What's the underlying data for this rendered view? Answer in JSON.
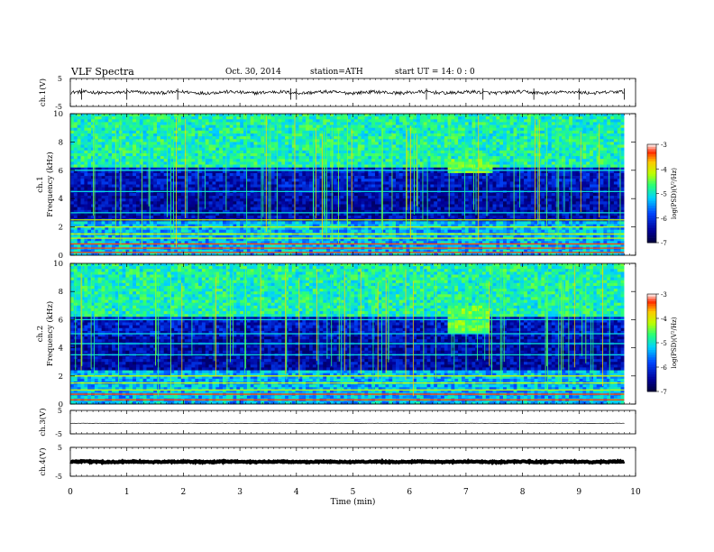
{
  "header": {
    "title": "VLF  Spectra",
    "date": "Oct. 30, 2014",
    "station": "station=ATH",
    "start": "start  UT  =   14: 0  : 0"
  },
  "chart_data": [
    {
      "type": "line",
      "name": "ch1-waveform",
      "ylabel": "ch.1(V)",
      "ylim": [
        -5,
        5
      ],
      "yticks": [
        "5",
        "-5"
      ],
      "xlim": [
        0,
        10
      ],
      "baseline": 0,
      "amplitude": 0.6,
      "spikes": [
        0.2,
        1.0,
        1.9,
        3.9,
        4.0,
        6.3,
        7.3,
        8.2,
        9.0,
        9.8
      ]
    },
    {
      "type": "heatmap",
      "name": "ch1-spectrogram",
      "ylabel": "ch.1\nFrequency  (kHz)",
      "xlim": [
        0,
        10
      ],
      "ylim": [
        0,
        10
      ],
      "yticks": [
        "0",
        "2",
        "4",
        "6",
        "8",
        "10"
      ],
      "data_end_min": 9.8,
      "colorbar": {
        "label": "log(PSD)(V²/Hz)",
        "range": [
          -7,
          -3
        ],
        "ticks": [
          "-3",
          "-4",
          "-5",
          "-6",
          "-7"
        ]
      },
      "bands_khz": [
        0.2,
        0.5,
        0.8,
        1.2,
        1.5,
        2.0,
        2.5,
        3.0,
        4.5,
        6.0
      ],
      "emission": {
        "t_start_min": 6.7,
        "t_end_min": 7.5,
        "f_low_khz": 5.8,
        "f_high_khz": 6.8
      }
    },
    {
      "type": "heatmap",
      "name": "ch2-spectrogram",
      "ylabel": "ch.2\nFrequency  (kHz)",
      "xlim": [
        0,
        10
      ],
      "ylim": [
        0,
        10
      ],
      "yticks": [
        "0",
        "2",
        "4",
        "6",
        "8",
        "10"
      ],
      "data_end_min": 9.8,
      "colorbar": {
        "label": "log(PSD)(V²/Hz)",
        "range": [
          -7,
          -3
        ],
        "ticks": [
          "-3",
          "-4",
          "-5",
          "-6",
          "-7"
        ]
      },
      "bands_khz": [
        0.3,
        0.7,
        1.0,
        1.5,
        2.0,
        3.5,
        4.3,
        5.0,
        6.0
      ],
      "emission": {
        "t_start_min": 6.7,
        "t_end_min": 7.4,
        "f_low_khz": 5.0,
        "f_high_khz": 7.0
      }
    },
    {
      "type": "line",
      "name": "ch3-waveform",
      "ylabel": "ch.3(V)",
      "ylim": [
        -5,
        5
      ],
      "yticks": [
        "5",
        "-5"
      ],
      "xlim": [
        0,
        10
      ],
      "baseline": -0.5,
      "amplitude": 0.05
    },
    {
      "type": "line",
      "name": "ch4-waveform",
      "ylabel": "ch.4(V)",
      "ylim": [
        -5,
        5
      ],
      "yticks": [
        "5",
        "-5"
      ],
      "xlim": [
        0,
        10
      ],
      "baseline": 0,
      "amplitude": 0.2
    }
  ],
  "xaxis": {
    "label": "Time  (min)",
    "ticks": [
      "0",
      "1",
      "2",
      "3",
      "4",
      "5",
      "6",
      "7",
      "8",
      "9",
      "10"
    ]
  }
}
